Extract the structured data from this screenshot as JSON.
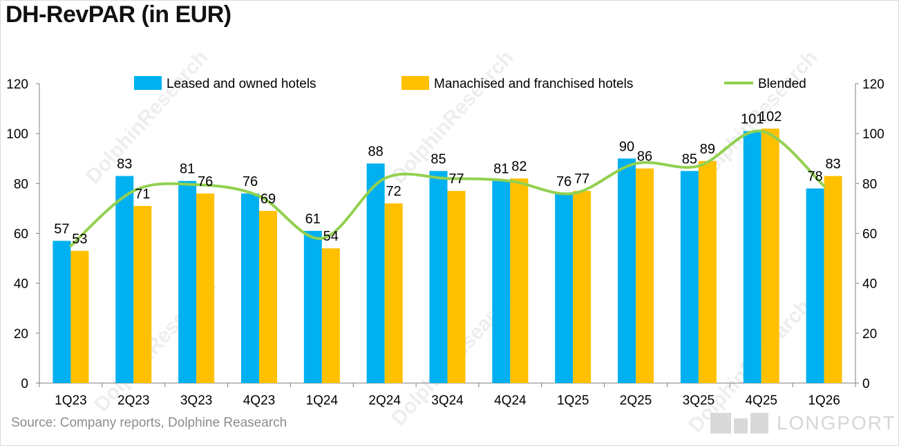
{
  "title": "DH-RevPAR (in EUR)",
  "source": "Source: Company reports, Dolphine Reasearch",
  "watermark": "DolphinResearch",
  "brand": "LONGPORT",
  "colors": {
    "leased": "#00B0F0",
    "managed": "#FFC000",
    "blended": "#92D050",
    "axis": "#7f7f7f",
    "text": "#000000"
  },
  "chart_data": {
    "type": "bar",
    "title": "DH-RevPAR (in EUR)",
    "categories": [
      "1Q23",
      "2Q23",
      "3Q23",
      "4Q23",
      "1Q24",
      "2Q24",
      "3Q24",
      "4Q24",
      "1Q25",
      "2Q25",
      "3Q25",
      "4Q25",
      "1Q26"
    ],
    "series": [
      {
        "name": "Leased and owned hotels",
        "type": "bar",
        "values": [
          57,
          83,
          81,
          76,
          61,
          88,
          85,
          81,
          76,
          90,
          85,
          101,
          78
        ]
      },
      {
        "name": "Manachised and franchised hotels",
        "type": "bar",
        "values": [
          53,
          71,
          76,
          69,
          54,
          72,
          77,
          82,
          77,
          86,
          89,
          102,
          83
        ]
      },
      {
        "name": "Blended",
        "type": "line",
        "values": [
          55,
          77,
          79.5,
          75,
          58,
          82,
          82,
          81,
          76,
          88,
          87,
          101,
          79
        ]
      }
    ],
    "ylim": [
      0,
      120
    ],
    "y2lim": [
      0,
      120
    ],
    "yticks": [
      0,
      20,
      40,
      60,
      80,
      100,
      120
    ],
    "legend": "top",
    "grid": false,
    "xlabel": "",
    "ylabel": ""
  }
}
